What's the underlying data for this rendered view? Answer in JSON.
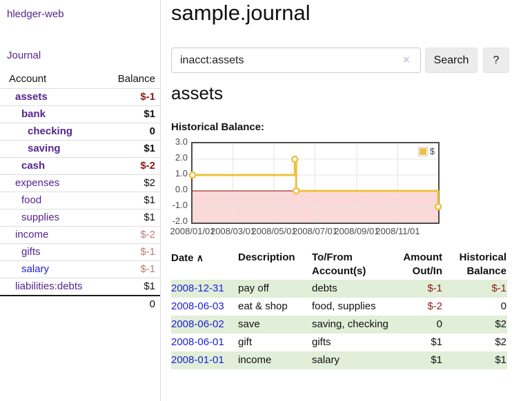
{
  "sidebar": {
    "brand": "hledger-web",
    "nav": {
      "journal": "Journal"
    },
    "accounts_table": {
      "headers": {
        "account": "Account",
        "balance": "Balance"
      },
      "rows": [
        {
          "name": "assets",
          "balance": "$-1",
          "level": 1,
          "bold": true,
          "name_style": "purple",
          "balance_style": "neg-dark"
        },
        {
          "name": "bank",
          "balance": "$1",
          "level": 2,
          "bold": true,
          "name_style": "purple",
          "balance_style": "plain"
        },
        {
          "name": "checking",
          "balance": "0",
          "level": 3,
          "bold": true,
          "name_style": "purple",
          "balance_style": "plain"
        },
        {
          "name": "saving",
          "balance": "$1",
          "level": 3,
          "bold": true,
          "name_style": "purple",
          "balance_style": "plain"
        },
        {
          "name": "cash",
          "balance": "$-2",
          "level": 2,
          "bold": true,
          "name_style": "purple",
          "balance_style": "neg-dark"
        },
        {
          "name": "expenses",
          "balance": "$2",
          "level": 1,
          "bold": false,
          "name_style": "purple",
          "balance_style": "plain"
        },
        {
          "name": "food",
          "balance": "$1",
          "level": 2,
          "bold": false,
          "name_style": "purple",
          "balance_style": "plain"
        },
        {
          "name": "supplies",
          "balance": "$1",
          "level": 2,
          "bold": false,
          "name_style": "purple",
          "balance_style": "plain"
        },
        {
          "name": "income",
          "balance": "$-2",
          "level": 1,
          "bold": false,
          "name_style": "purple",
          "balance_style": "neg-soft"
        },
        {
          "name": "gifts",
          "balance": "$-1",
          "level": 2,
          "bold": false,
          "name_style": "purple",
          "balance_style": "neg-soft"
        },
        {
          "name": "salary",
          "balance": "$-1",
          "level": 2,
          "bold": false,
          "name_style": "blue",
          "balance_style": "neg-soft"
        },
        {
          "name": "liabilities:debts",
          "balance": "$1",
          "level": 1,
          "bold": false,
          "name_style": "purple",
          "balance_style": "plain"
        }
      ],
      "total": "0"
    }
  },
  "header": {
    "title": "sample.journal"
  },
  "search": {
    "query": "inacct:assets",
    "clear_icon": "×",
    "search_label": "Search",
    "help_label": "?"
  },
  "account_page": {
    "heading": "assets",
    "chart_label": "Historical Balance:"
  },
  "chart_data": {
    "type": "line",
    "title": "Historical Balance",
    "style": "step",
    "series": [
      {
        "name": "$",
        "color": "#edc240",
        "points": [
          {
            "date": "2008-01-01",
            "value": 1
          },
          {
            "date": "2008-06-01",
            "value": 2
          },
          {
            "date": "2008-06-03",
            "value": 0
          },
          {
            "date": "2008-12-31",
            "value": -1
          }
        ]
      }
    ],
    "x_range": [
      "2008-01-01",
      "2008-12-31"
    ],
    "y_range": [
      -2,
      3
    ],
    "x_ticks": [
      "2008/01/01",
      "2008/03/01",
      "2008/05/01",
      "2008/07/01",
      "2008/09/01",
      "2008/11/01"
    ],
    "y_ticks": [
      "3.0",
      "2.0",
      "1.0",
      "0.0",
      "-1.0",
      "-2.0"
    ],
    "grid": true,
    "legend": {
      "label": "$",
      "position": "top-right"
    },
    "negative_region_color": "#fbd9d9",
    "zero_line_color": "#8b0000",
    "grid_color": "#e6e6e6",
    "border_color": "#4c4c4c"
  },
  "transactions": {
    "headers": [
      {
        "label": "Date",
        "sort_icon": "∧"
      },
      {
        "label": "Description"
      },
      {
        "label": "To/From Account(s)"
      },
      {
        "label": "Amount Out/In"
      },
      {
        "label": "Historical Balance"
      }
    ],
    "rows": [
      {
        "date": "2008-12-31",
        "description": "pay off",
        "accounts": "debts",
        "amount": "$-1",
        "balance": "$-1",
        "amount_neg": true,
        "balance_neg": true
      },
      {
        "date": "2008-06-03",
        "description": "eat & shop",
        "accounts": "food, supplies",
        "amount": "$-2",
        "balance": "0",
        "amount_neg": true,
        "balance_neg": false
      },
      {
        "date": "2008-06-02",
        "description": "save",
        "accounts": "saving, checking",
        "amount": "0",
        "balance": "$2",
        "amount_neg": false,
        "balance_neg": false
      },
      {
        "date": "2008-06-01",
        "description": "gift",
        "accounts": "gifts",
        "amount": "$1",
        "balance": "$2",
        "amount_neg": false,
        "balance_neg": false
      },
      {
        "date": "2008-01-01",
        "description": "income",
        "accounts": "salary",
        "amount": "$1",
        "balance": "$1",
        "amount_neg": false,
        "balance_neg": false
      }
    ]
  },
  "colors": {
    "link_purple": "#54248f",
    "link_blue": "#1b1fd4",
    "negative_strong": "#8c1a17",
    "negative_soft": "#c4787a",
    "row_highlight_green": "#e1eed8",
    "chart_line_gold": "#edc240",
    "chart_negative_region_pink": "#fbd9d9",
    "chart_zero_line_red": "#8b0000"
  }
}
